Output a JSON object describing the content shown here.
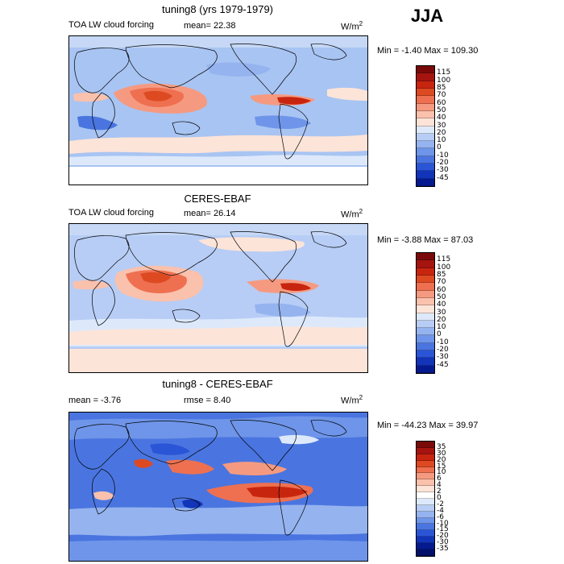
{
  "season": "JJA",
  "panels": [
    {
      "title": "tuning8 (yrs 1979-1979)",
      "label_left": "TOA LW cloud forcing",
      "mean_text": "mean=  22.38",
      "units": "W/m",
      "units_exp": "2",
      "minmax": "Min =  -1.40 Max = 109.30",
      "colorbar_labels": [
        "115",
        "100",
        "85",
        "70",
        "60",
        "50",
        "40",
        "30",
        "20",
        "10",
        "0",
        "-10",
        "-20",
        "-30",
        "-45"
      ]
    },
    {
      "title": "CERES-EBAF",
      "label_left": "TOA LW cloud forcing",
      "mean_text": "mean=  26.14",
      "units": "W/m",
      "units_exp": "2",
      "minmax": "Min =  -3.88 Max =  87.03",
      "colorbar_labels": [
        "115",
        "100",
        "85",
        "70",
        "60",
        "50",
        "40",
        "30",
        "20",
        "10",
        "0",
        "-10",
        "-20",
        "-30",
        "-45"
      ]
    },
    {
      "title": "tuning8 - CERES-EBAF",
      "label_left": "mean =  -3.76",
      "mean_text": "rmse =   8.40",
      "units": "W/m",
      "units_exp": "2",
      "minmax": "Min = -44.23 Max =  39.97",
      "colorbar_labels": [
        "35",
        "30",
        "20",
        "15",
        "10",
        "6",
        "4",
        "2",
        "0",
        "-2",
        "-4",
        "-6",
        "-10",
        "-15",
        "-20",
        "-30",
        "-35"
      ]
    }
  ],
  "colors": {
    "abs_scale": [
      "#7a0a0a",
      "#a5140f",
      "#c8250f",
      "#dd4a22",
      "#ee7050",
      "#f59a80",
      "#fac1ad",
      "#fde4d8",
      "#dde9fb",
      "#b7cdf5",
      "#95b3ef",
      "#6e95e9",
      "#4a75e0",
      "#2a55d6",
      "#1234b8",
      "#061a8f"
    ],
    "diff_scale": [
      "#7a0a0a",
      "#a5140f",
      "#c8250f",
      "#dd4a22",
      "#ee7050",
      "#f59a80",
      "#fac1ad",
      "#fde4d8",
      "#ffffff",
      "#dde9fb",
      "#b7cdf5",
      "#95b3ef",
      "#6e95e9",
      "#4a75e0",
      "#2a55d6",
      "#1234b8",
      "#061a8f",
      "#03106a"
    ]
  }
}
